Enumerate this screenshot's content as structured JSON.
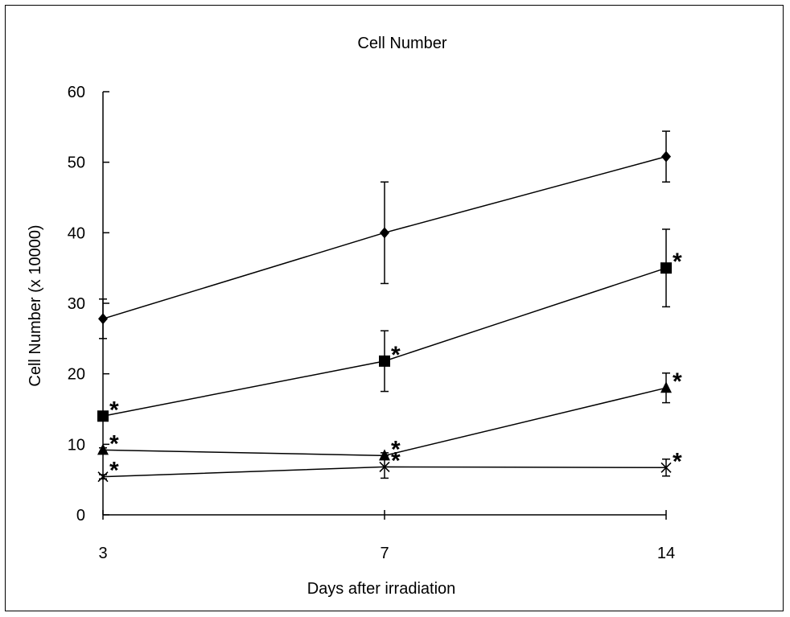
{
  "chart_data": {
    "type": "line",
    "title": "Cell Number",
    "xlabel": "Days after irradiation",
    "ylabel": "Cell Number  (x 10000)",
    "categories": [
      "3",
      "7",
      "14"
    ],
    "ylim": [
      0,
      60
    ],
    "yticks": [
      "0",
      "10",
      "20",
      "30",
      "40",
      "50",
      "60"
    ],
    "grid": false,
    "significance_mark": "*",
    "series": [
      {
        "marker": "diamond",
        "values": [
          27.8,
          40.0,
          50.8
        ],
        "errors": [
          2.8,
          7.2,
          3.6
        ],
        "significant": [
          false,
          false,
          false
        ]
      },
      {
        "marker": "square",
        "values": [
          14.0,
          21.8,
          35.0
        ],
        "errors": [
          0.3,
          4.3,
          5.5
        ],
        "significant": [
          true,
          true,
          true
        ]
      },
      {
        "marker": "triangle",
        "values": [
          9.2,
          8.4,
          18.0
        ],
        "errors": [
          0.3,
          0.4,
          2.1
        ],
        "significant": [
          true,
          true,
          true
        ]
      },
      {
        "marker": "x",
        "values": [
          5.4,
          6.8,
          6.7
        ],
        "errors": [
          0.3,
          1.6,
          1.2
        ],
        "significant": [
          true,
          true,
          true
        ]
      }
    ]
  }
}
